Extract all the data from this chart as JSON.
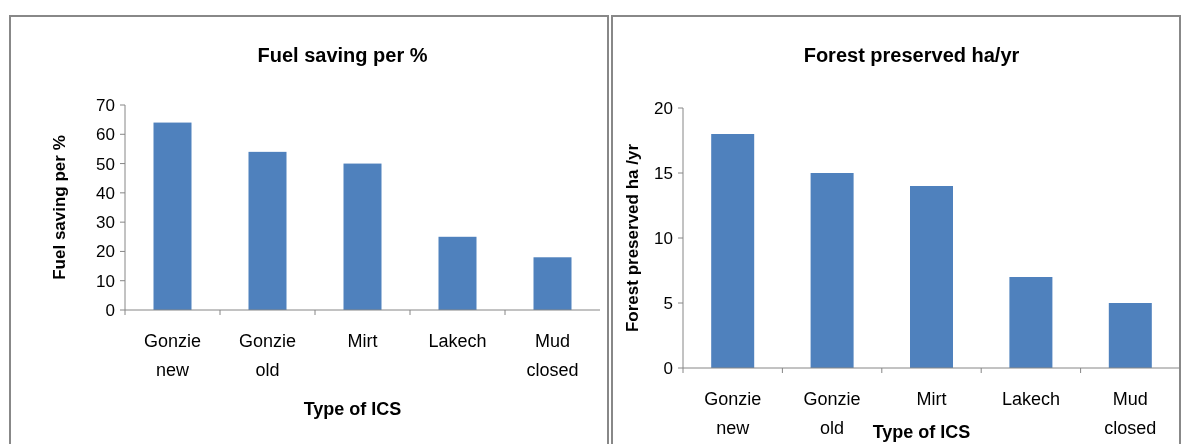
{
  "chart_data": [
    {
      "type": "bar",
      "title": "Fuel saving per %",
      "xlabel": "Type of ICS",
      "ylabel": "Fuel saving per %",
      "categories": [
        "Gonzie new",
        "Gonzie old",
        "Mirt",
        "Lakech",
        "Mud closed"
      ],
      "values": [
        64,
        54,
        50,
        25,
        18
      ],
      "color": "#4f81bd",
      "ylim": [
        0,
        70
      ],
      "yticks": [
        0,
        10,
        20,
        30,
        40,
        50,
        60,
        70
      ]
    },
    {
      "type": "bar",
      "title": "Forest preserved ha/yr",
      "xlabel": "Type of ICS",
      "ylabel": "Forest preserved ha /yr",
      "categories": [
        "Gonzie new",
        "Gonzie old",
        "Mirt",
        "Lakech",
        "Mud closed"
      ],
      "values": [
        18,
        15,
        14,
        7,
        5
      ],
      "color": "#4f81bd",
      "ylim": [
        0,
        20
      ],
      "yticks": [
        0,
        5,
        10,
        15,
        20
      ]
    }
  ]
}
